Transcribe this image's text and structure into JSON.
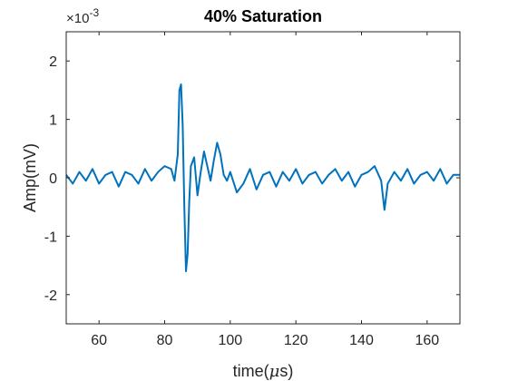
{
  "chart_data": {
    "type": "line",
    "title": "40% Saturation",
    "xlabel_prefix": "time(",
    "xlabel_symbol": "μ",
    "xlabel_suffix": "s)",
    "ylabel": "Amp(mV)",
    "y_exponent_label": "×10",
    "y_exponent_power": "-3",
    "xlim": [
      50,
      170
    ],
    "ylim": [
      -0.0025,
      0.0025
    ],
    "x_ticks": [
      60,
      80,
      100,
      120,
      140,
      160
    ],
    "x_tick_labels": [
      "60",
      "80",
      "100",
      "120",
      "140",
      "160"
    ],
    "y_ticks": [
      -0.002,
      -0.001,
      0,
      0.001,
      0.002
    ],
    "y_tick_labels": [
      "-2",
      "-1",
      "0",
      "1",
      "2"
    ],
    "grid": false,
    "color": "#0072BD",
    "series": [
      {
        "x": [
          50,
          52,
          54,
          56,
          58,
          60,
          62,
          64,
          66,
          68,
          70,
          72,
          74,
          76,
          78,
          80,
          82,
          83,
          84,
          84.5,
          85,
          85.5,
          86,
          86.5,
          87,
          87.5,
          88,
          89,
          90,
          91,
          92,
          93,
          94,
          95,
          96,
          97,
          98,
          99,
          100,
          102,
          104,
          106,
          108,
          110,
          112,
          114,
          116,
          118,
          120,
          122,
          124,
          126,
          128,
          130,
          132,
          134,
          136,
          138,
          140,
          142,
          144,
          146,
          147,
          148,
          150,
          152,
          154,
          156,
          158,
          160,
          162,
          164,
          166,
          168,
          170
        ],
        "y": [
          5e-05,
          -0.0001,
          0.0001,
          -5e-05,
          0.00015,
          -0.0001,
          5e-05,
          0.0001,
          -0.00015,
          0.0001,
          5e-05,
          -0.0001,
          0.00015,
          -5e-05,
          0.0001,
          0.0002,
          0.00015,
          -5e-05,
          0.0004,
          0.0015,
          0.0016,
          0.0009,
          -0.0005,
          -0.0016,
          -0.0013,
          -0.0004,
          0.0002,
          0.00035,
          -0.0003,
          0.0001,
          0.00045,
          0.0002,
          -5e-05,
          0.0003,
          0.0006,
          0.0004,
          5e-05,
          -5e-05,
          0.0001,
          -0.00025,
          -0.0001,
          0.00015,
          -0.0002,
          5e-05,
          0.0001,
          -0.00015,
          0.0001,
          -5e-05,
          0.00015,
          -0.0001,
          5e-05,
          0.0001,
          -0.0001,
          5e-05,
          0.00015,
          -5e-05,
          0.0001,
          -0.00015,
          5e-05,
          0.0001,
          0.0002,
          -5e-05,
          -0.00055,
          -0.0001,
          0.0001,
          -5e-05,
          0.00015,
          -0.0001,
          5e-05,
          0.0001,
          -5e-05,
          0.00015,
          -0.0001,
          5e-05,
          5e-05
        ]
      }
    ]
  }
}
